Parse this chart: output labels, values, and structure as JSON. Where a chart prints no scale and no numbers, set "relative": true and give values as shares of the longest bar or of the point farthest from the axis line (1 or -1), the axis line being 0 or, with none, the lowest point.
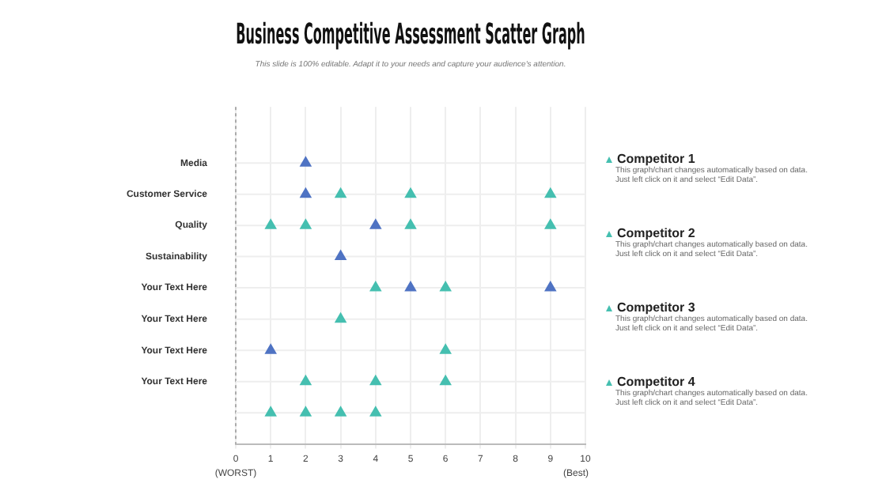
{
  "chart_data": {
    "type": "scatter",
    "title": "Business Competitive Assessment Scatter Graph",
    "subtitle": "This slide is 100% editable. Adapt it to your needs and capture your audience's attention.",
    "relative": true,
    "series": [
      {
        "color": "#4f73c3",
        "x": [
          2,
          2,
          4,
          3,
          5,
          9,
          1
        ],
        "values": [
          1,
          0.889,
          0.778,
          0.667,
          0.556,
          0.556,
          0.333
        ]
      },
      {
        "color": "#45bfb0",
        "x": [
          3,
          5,
          9,
          1,
          2,
          5,
          9,
          4,
          6,
          3,
          6,
          2,
          4,
          6,
          1,
          2,
          3,
          4
        ],
        "values": [
          0.889,
          0.889,
          0.889,
          0.778,
          0.778,
          0.778,
          0.778,
          0.556,
          0.556,
          0.444,
          0.333,
          0.222,
          0.222,
          0.222,
          0.111,
          0.111,
          0.111,
          0.111
        ]
      }
    ],
    "xlim": [
      0,
      10
    ],
    "xticks": [
      0,
      1,
      2,
      3,
      4,
      5,
      6,
      7,
      8,
      9,
      10
    ],
    "grid": true,
    "marker": "triangle",
    "legend": false,
    "annotations": [
      "Media",
      "Customer Service",
      "Quality",
      "Sustainability",
      "Your Text Here",
      "Your Text Here",
      "Your Text Here",
      "Your Text Here",
      "(WORST)",
      "(Best)",
      "Competitor 1",
      "This graph/chart changes automatically based on data. Just left click on it and select “Edit Data”.",
      "Competitor 2",
      "This graph/chart changes automatically based on data. Just left click on it and select “Edit Data”.",
      "Competitor 3",
      "This graph/chart changes automatically based on data. Just left click on it and select “Edit Data”.",
      "Competitor 4",
      "This graph/chart changes automatically based on data. Just left click on it and select “Edit Data”."
    ]
  }
}
